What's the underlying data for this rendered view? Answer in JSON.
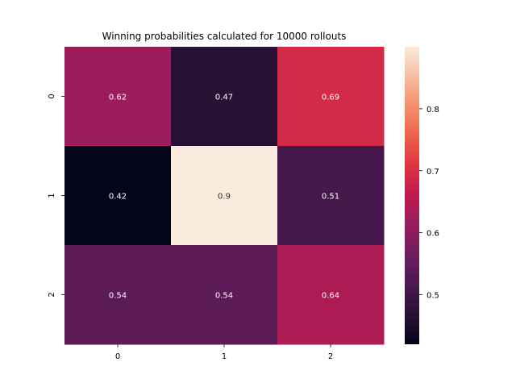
{
  "chart_data": {
    "type": "heatmap",
    "title": "Winning probabilities calculated for 10000 rollouts",
    "x_categories": [
      "0",
      "1",
      "2"
    ],
    "y_categories": [
      "0",
      "1",
      "2"
    ],
    "values": [
      [
        0.62,
        0.47,
        0.69
      ],
      [
        0.42,
        0.9,
        0.51
      ],
      [
        0.54,
        0.54,
        0.64
      ]
    ],
    "colorbar": {
      "range": [
        0.42,
        0.9
      ],
      "ticks": [
        "0.5",
        "0.6",
        "0.7",
        "0.8"
      ],
      "tick_values": [
        0.5,
        0.6,
        0.7,
        0.8
      ]
    },
    "colormap": "rocket",
    "grid": false,
    "legend": "colorbar-right"
  }
}
